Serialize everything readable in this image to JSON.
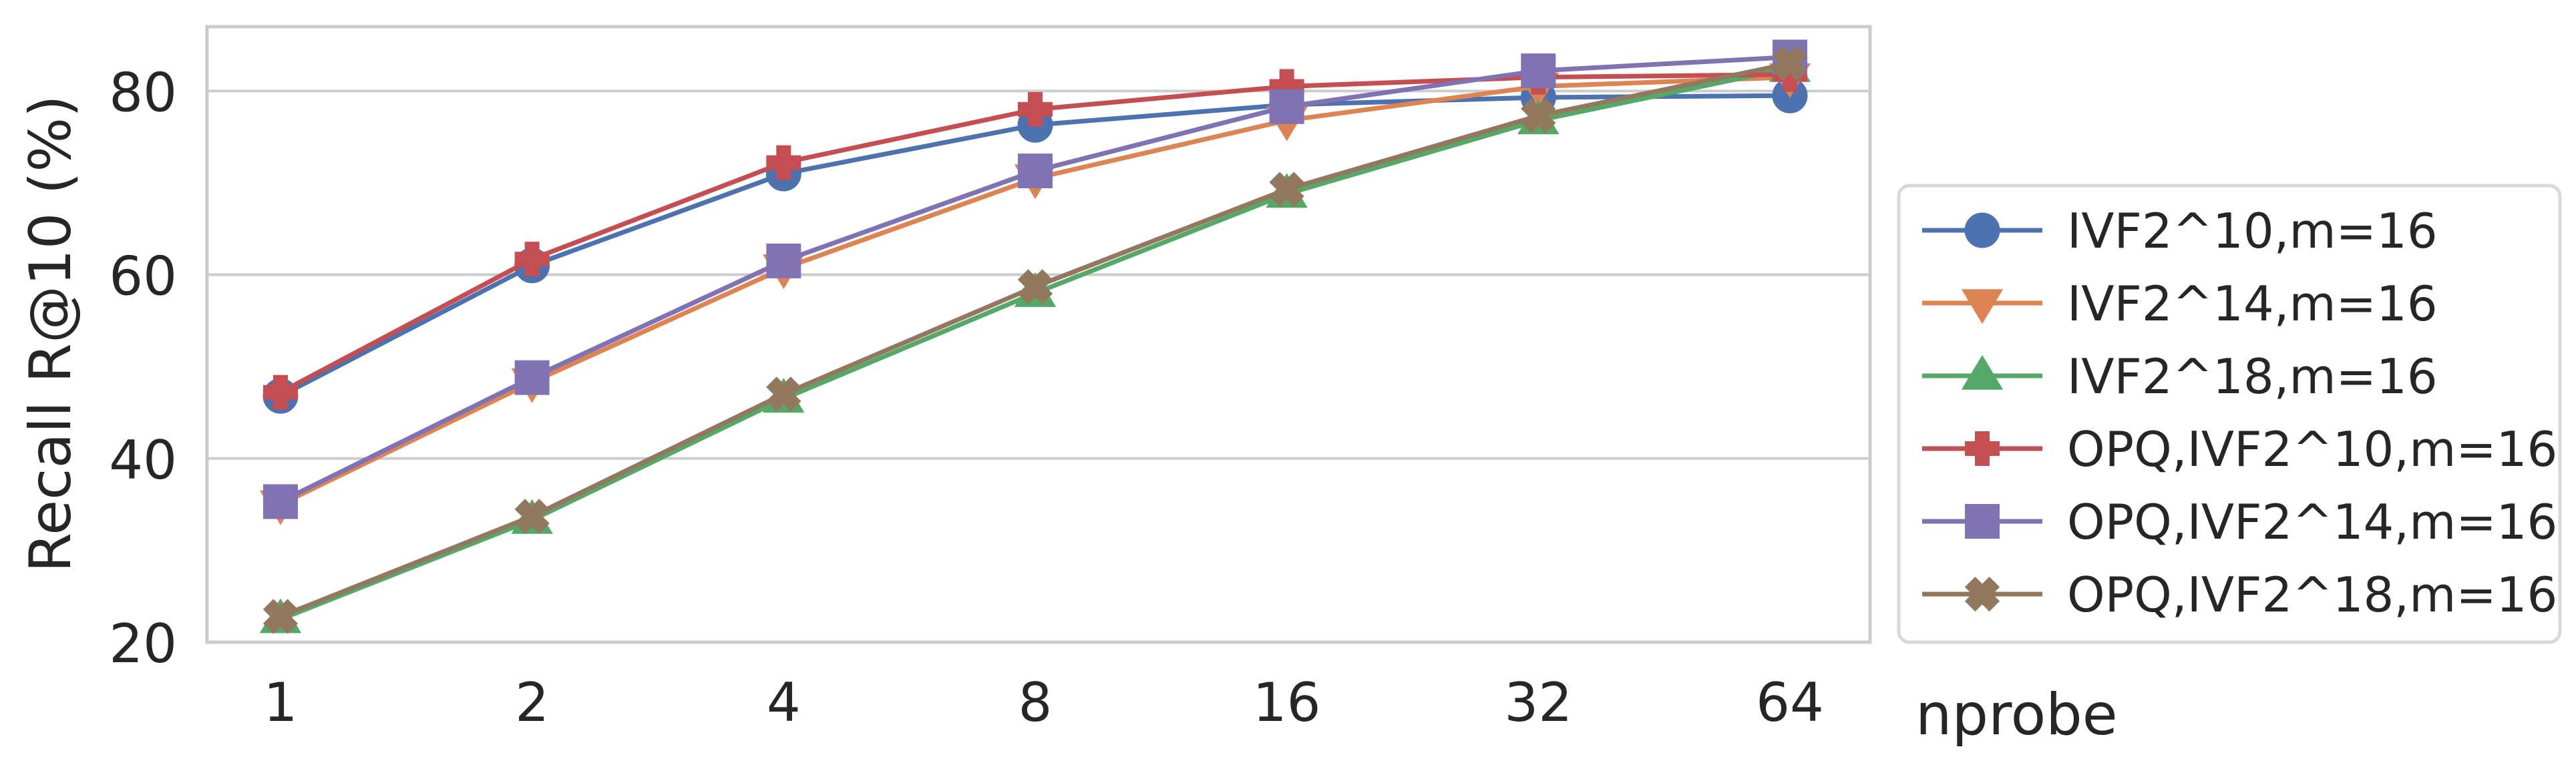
{
  "chart_data": {
    "type": "line",
    "title": "",
    "xlabel": "nprobe",
    "ylabel": "Recall R@10 (%)",
    "categories": [
      "1",
      "2",
      "4",
      "8",
      "16",
      "32",
      "64"
    ],
    "x_scale": "log2",
    "ylim": [
      20,
      87
    ],
    "yticks": [
      20,
      40,
      60,
      80
    ],
    "grid": "horizontal",
    "legend_position": "right",
    "series": [
      {
        "name": "IVF2^10,m=16",
        "color": "#4c72b0",
        "marker": "circle",
        "values": [
          46.8,
          61.0,
          71.0,
          76.3,
          78.5,
          79.3,
          79.5
        ]
      },
      {
        "name": "IVF2^14,m=16",
        "color": "#dd8452",
        "marker": "triangle-down",
        "values": [
          35.0,
          48.3,
          60.7,
          70.5,
          76.8,
          80.5,
          81.5
        ]
      },
      {
        "name": "IVF2^18,m=16",
        "color": "#55a868",
        "marker": "triangle-up",
        "values": [
          22.5,
          33.3,
          46.5,
          58.0,
          68.8,
          76.8,
          82.5
        ]
      },
      {
        "name": "OPQ,IVF2^10,m=16",
        "color": "#c44e52",
        "marker": "plus",
        "values": [
          47.2,
          61.7,
          72.2,
          78.0,
          80.5,
          81.5,
          81.8
        ]
      },
      {
        "name": "OPQ,IVF2^14,m=16",
        "color": "#8172b3",
        "marker": "square",
        "values": [
          35.3,
          48.8,
          61.5,
          71.3,
          78.3,
          82.2,
          83.7
        ]
      },
      {
        "name": "OPQ,IVF2^18,m=16",
        "color": "#937860",
        "marker": "x",
        "values": [
          22.8,
          33.7,
          47.0,
          58.7,
          69.3,
          77.3,
          83.0
        ]
      }
    ]
  }
}
